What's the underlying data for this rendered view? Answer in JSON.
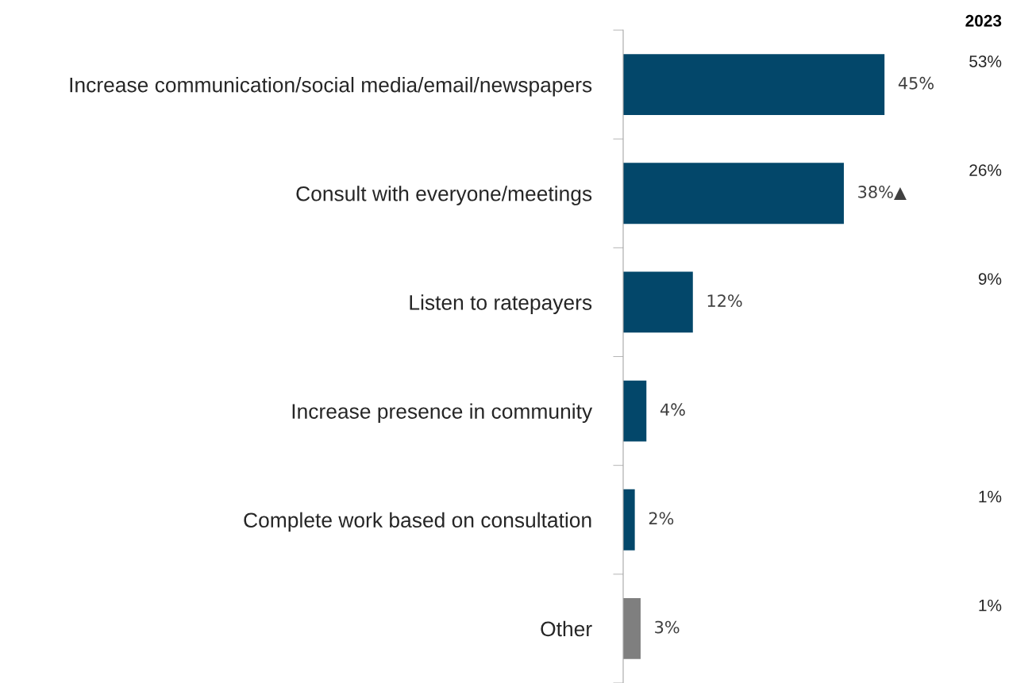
{
  "chart_data": {
    "type": "bar",
    "orientation": "horizontal",
    "categories": [
      "Increase communication/social media/email/newspapers",
      "Consult with everyone/meetings",
      "Listen to ratepayers",
      "Increase presence in community",
      "Complete work based on consultation",
      "Other"
    ],
    "values": [
      45,
      38,
      12,
      4,
      2,
      3
    ],
    "colors": [
      "#03476a",
      "#03476a",
      "#03476a",
      "#03476a",
      "#03476a",
      "#7f7f7f"
    ],
    "value_labels": [
      "45%",
      "38%▲",
      "12%",
      "4%",
      "2%",
      "3%"
    ],
    "annotations": [
      "2023",
      "53%\n26%\n9%\n\n1%\n1%"
    ],
    "grid": false,
    "legend": false
  }
}
